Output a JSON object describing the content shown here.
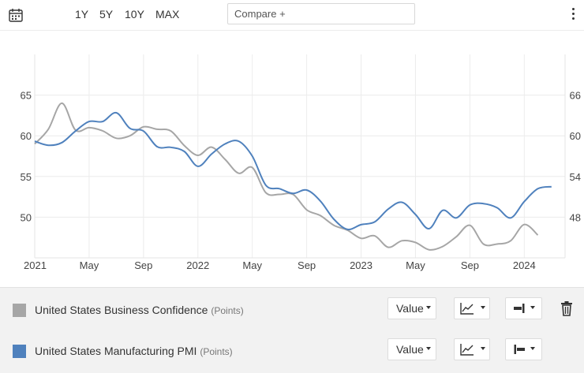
{
  "toolbar": {
    "calendar_icon": "calendar-icon",
    "ranges": [
      "1Y",
      "5Y",
      "10Y",
      "MAX"
    ],
    "compare_placeholder": "Compare +",
    "menu_icon": "more-vertical-icon"
  },
  "chart_data": {
    "type": "line",
    "x_tick_labels": [
      "2021",
      "May",
      "Sep",
      "2022",
      "May",
      "Sep",
      "2023",
      "May",
      "Sep",
      "2024"
    ],
    "x_tick_dates": [
      "2021-01",
      "2021-05",
      "2021-09",
      "2022-01",
      "2022-05",
      "2022-09",
      "2023-01",
      "2023-05",
      "2023-09",
      "2024-01"
    ],
    "x_range": [
      "2021-01",
      "2024-04"
    ],
    "left_axis": {
      "ticks": [
        50,
        55,
        60,
        65
      ],
      "range": [
        45,
        70
      ],
      "series": "United States Business Confidence"
    },
    "right_axis": {
      "ticks": [
        48,
        54,
        60,
        66
      ],
      "range": [
        42,
        72
      ],
      "series": "United States Manufacturing PMI"
    },
    "grid": true,
    "series": [
      {
        "name": "United States Business Confidence",
        "unit": "Points",
        "axis": "left",
        "color": "#a6a6a6",
        "points": [
          [
            "2021-01",
            59.0
          ],
          [
            "2021-02",
            60.8
          ],
          [
            "2021-03",
            64.0
          ],
          [
            "2021-04",
            60.7
          ],
          [
            "2021-05",
            61.0
          ],
          [
            "2021-06",
            60.6
          ],
          [
            "2021-07",
            59.7
          ],
          [
            "2021-08",
            60.0
          ],
          [
            "2021-09",
            61.1
          ],
          [
            "2021-10",
            60.8
          ],
          [
            "2021-11",
            60.6
          ],
          [
            "2021-12",
            58.8
          ],
          [
            "2022-01",
            57.6
          ],
          [
            "2022-02",
            58.6
          ],
          [
            "2022-03",
            57.1
          ],
          [
            "2022-04",
            55.4
          ],
          [
            "2022-05",
            56.1
          ],
          [
            "2022-06",
            53.0
          ],
          [
            "2022-07",
            52.8
          ],
          [
            "2022-08",
            52.8
          ],
          [
            "2022-09",
            50.9
          ],
          [
            "2022-10",
            50.2
          ],
          [
            "2022-11",
            49.0
          ],
          [
            "2022-12",
            48.4
          ],
          [
            "2023-01",
            47.4
          ],
          [
            "2023-02",
            47.7
          ],
          [
            "2023-03",
            46.3
          ],
          [
            "2023-04",
            47.1
          ],
          [
            "2023-05",
            46.9
          ],
          [
            "2023-06",
            46.0
          ],
          [
            "2023-07",
            46.4
          ],
          [
            "2023-08",
            47.6
          ],
          [
            "2023-09",
            49.0
          ],
          [
            "2023-10",
            46.7
          ],
          [
            "2023-11",
            46.7
          ],
          [
            "2023-12",
            47.1
          ],
          [
            "2024-01",
            49.1
          ],
          [
            "2024-02",
            47.8
          ]
        ]
      },
      {
        "name": "United States Manufacturing PMI",
        "unit": "Points",
        "axis": "right",
        "color": "#4f81bd",
        "points": [
          [
            "2021-01",
            59.2
          ],
          [
            "2021-02",
            58.6
          ],
          [
            "2021-03",
            59.0
          ],
          [
            "2021-04",
            60.7
          ],
          [
            "2021-05",
            62.1
          ],
          [
            "2021-06",
            62.1
          ],
          [
            "2021-07",
            63.4
          ],
          [
            "2021-08",
            61.1
          ],
          [
            "2021-09",
            60.7
          ],
          [
            "2021-10",
            58.4
          ],
          [
            "2021-11",
            58.3
          ],
          [
            "2021-12",
            57.7
          ],
          [
            "2022-01",
            55.5
          ],
          [
            "2022-02",
            57.3
          ],
          [
            "2022-03",
            58.8
          ],
          [
            "2022-04",
            59.2
          ],
          [
            "2022-05",
            57.0
          ],
          [
            "2022-06",
            52.7
          ],
          [
            "2022-07",
            52.2
          ],
          [
            "2022-08",
            51.5
          ],
          [
            "2022-09",
            52.0
          ],
          [
            "2022-10",
            50.4
          ],
          [
            "2022-11",
            47.7
          ],
          [
            "2022-12",
            46.2
          ],
          [
            "2023-01",
            46.9
          ],
          [
            "2023-02",
            47.3
          ],
          [
            "2023-03",
            49.2
          ],
          [
            "2023-04",
            50.2
          ],
          [
            "2023-05",
            48.4
          ],
          [
            "2023-06",
            46.3
          ],
          [
            "2023-07",
            49.0
          ],
          [
            "2023-08",
            47.9
          ],
          [
            "2023-09",
            49.8
          ],
          [
            "2023-10",
            50.0
          ],
          [
            "2023-11",
            49.4
          ],
          [
            "2023-12",
            47.9
          ],
          [
            "2024-01",
            50.3
          ],
          [
            "2024-02",
            52.2
          ],
          [
            "2024-03",
            52.5
          ]
        ]
      }
    ]
  },
  "legend": {
    "rows": [
      {
        "name": "United States Business Confidence",
        "unit": "(Points)",
        "color": "#a6a6a6",
        "value_label": "Value",
        "chart_type_icon": "line-chart-icon",
        "axis_icon": "right-axis-icon",
        "delete_icon": "trash-icon"
      },
      {
        "name": "United States Manufacturing PMI",
        "unit": "(Points)",
        "color": "#4f81bd",
        "value_label": "Value",
        "chart_type_icon": "line-chart-icon",
        "axis_icon": "left-axis-icon"
      }
    ]
  }
}
